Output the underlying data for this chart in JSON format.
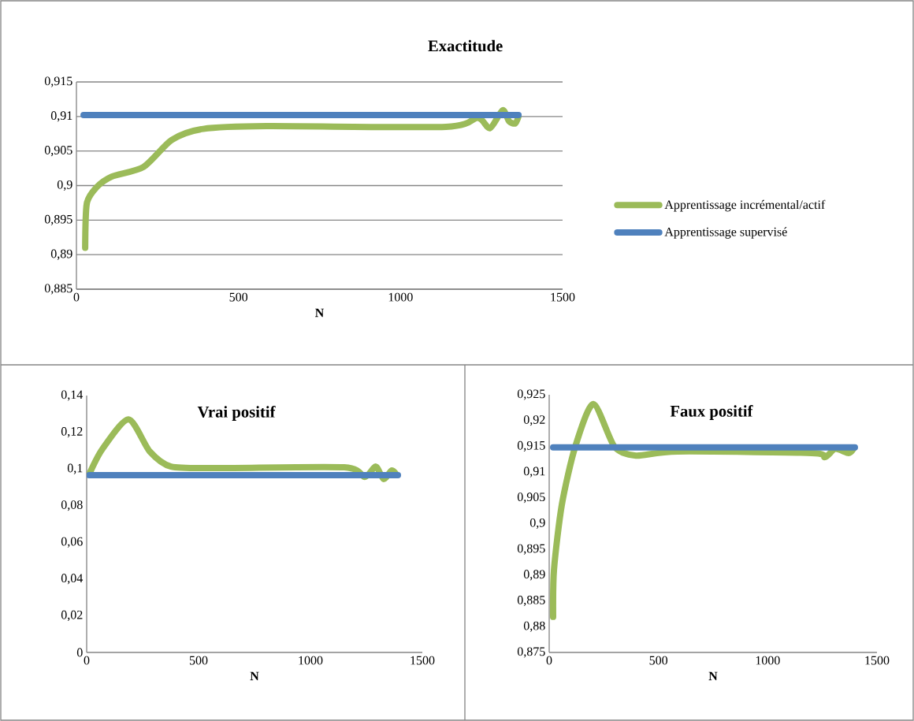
{
  "chart_data": [
    {
      "type": "line",
      "title": "Exactitude",
      "xlabel": "N",
      "xlim": [
        0,
        1500
      ],
      "xticks": [
        0,
        500,
        1000,
        1500
      ],
      "ylim": [
        0.885,
        0.915
      ],
      "yticks": [
        {
          "value": 0.885,
          "label": "0,885"
        },
        {
          "value": 0.89,
          "label": "0,89"
        },
        {
          "value": 0.895,
          "label": "0,895"
        },
        {
          "value": 0.9,
          "label": "0,9"
        },
        {
          "value": 0.905,
          "label": "0,905"
        },
        {
          "value": 0.91,
          "label": "0,91"
        },
        {
          "value": 0.915,
          "label": "0,915"
        }
      ],
      "grid": "y",
      "legend": "right",
      "series": [
        {
          "name": "Apprentissage incrémental/actif",
          "color": "#9bbb59",
          "x": [
            27,
            32,
            61,
            109,
            207,
            294,
            391,
            586,
            1140,
            1238,
            1276,
            1315,
            1335,
            1354,
            1364
          ],
          "values": [
            0.891,
            0.8974,
            0.8997,
            0.9013,
            0.9027,
            0.9066,
            0.9082,
            0.9086,
            0.9085,
            0.9098,
            0.9083,
            0.9109,
            0.9093,
            0.909,
            0.91
          ]
        },
        {
          "name": "Apprentissage supervisé",
          "color": "#4f81bd",
          "x": [
            22,
            1364
          ],
          "values": [
            0.9102,
            0.9102
          ]
        }
      ]
    },
    {
      "type": "line",
      "title": "Vrai positif",
      "xlabel": "N",
      "xlim": [
        0,
        1500
      ],
      "xticks": [
        0,
        500,
        1000,
        1500
      ],
      "ylim": [
        0,
        0.14
      ],
      "yticks": [
        0,
        {
          "value": 0.02,
          "label": "0,02"
        },
        {
          "value": 0.04,
          "label": "0,04"
        },
        {
          "value": 0.06,
          "label": "0,06"
        },
        {
          "value": 0.08,
          "label": "0,08"
        },
        {
          "value": 0.1,
          "label": "0,1"
        },
        {
          "value": 0.12,
          "label": "0,12"
        },
        {
          "value": 0.14,
          "label": "0,14"
        }
      ],
      "series": [
        {
          "color": "#9bbb59",
          "x": [
            11,
            70,
            187,
            282,
            377,
            588,
            1151,
            1243,
            1292,
            1327,
            1363,
            1384
          ],
          "values": [
            0.097,
            0.1108,
            0.127,
            0.1095,
            0.1013,
            0.1005,
            0.1009,
            0.0957,
            0.1013,
            0.0945,
            0.0992,
            0.097
          ]
        },
        {
          "color": "#4f81bd",
          "x": [
            11,
            1391
          ],
          "values": [
            0.0966,
            0.0966
          ]
        }
      ]
    },
    {
      "type": "line",
      "title": "Faux positif",
      "xlabel": "N",
      "xlim": [
        0,
        1500
      ],
      "xticks": [
        0,
        500,
        1000,
        1500
      ],
      "ylim": [
        0.875,
        0.925
      ],
      "yticks": [
        {
          "value": 0.875,
          "label": "0,875"
        },
        {
          "value": 0.88,
          "label": "0,88"
        },
        {
          "value": 0.885,
          "label": "0,885"
        },
        {
          "value": 0.89,
          "label": "0,89"
        },
        {
          "value": 0.895,
          "label": "0,895"
        },
        {
          "value": 0.9,
          "label": "0,9"
        },
        {
          "value": 0.905,
          "label": "0,905"
        },
        {
          "value": 0.91,
          "label": "0,91"
        },
        {
          "value": 0.915,
          "label": "0,915"
        },
        {
          "value": 0.92,
          "label": "0,92"
        },
        {
          "value": 0.925,
          "label": "0,925"
        }
      ],
      "series": [
        {
          "color": "#9bbb59",
          "x": [
            18,
            22,
            58,
            119,
            202,
            299,
            397,
            588,
            1201,
            1262,
            1309,
            1370,
            1392
          ],
          "values": [
            0.8819,
            0.8911,
            0.9037,
            0.9149,
            0.9232,
            0.9149,
            0.9132,
            0.914,
            0.9137,
            0.9129,
            0.9145,
            0.9137,
            0.9145
          ]
        },
        {
          "color": "#4f81bd",
          "x": [
            18,
            1399
          ],
          "values": [
            0.9148,
            0.9148
          ]
        }
      ]
    }
  ]
}
